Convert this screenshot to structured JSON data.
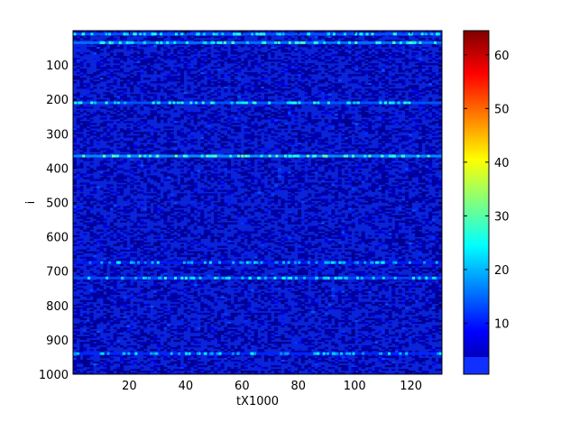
{
  "chart_data": {
    "type": "heatmap",
    "title": "",
    "xlabel": "tX1000",
    "ylabel": "i",
    "xlim": [
      0,
      131
    ],
    "ylim": [
      1000,
      0
    ],
    "x_ticks": [
      20,
      40,
      60,
      80,
      100,
      120
    ],
    "y_ticks": [
      100,
      200,
      300,
      400,
      500,
      600,
      700,
      800,
      900,
      1000
    ],
    "colorbar": {
      "range": [
        0.5,
        64.5
      ],
      "ticks": [
        10,
        20,
        30,
        40,
        50,
        60
      ],
      "colormap": "jet"
    },
    "background_value": 2,
    "bright_rows": [
      {
        "i": 10,
        "value": 14
      },
      {
        "i": 35,
        "value": 16
      },
      {
        "i": 210,
        "value": 14
      },
      {
        "i": 365,
        "value": 18
      },
      {
        "i": 675,
        "value": 10
      },
      {
        "i": 720,
        "value": 13
      },
      {
        "i": 940,
        "value": 11
      }
    ],
    "grid": false,
    "legend": "none"
  },
  "colors": {
    "low": "#00008f",
    "mid": "#1040ff",
    "high": "#800000"
  }
}
